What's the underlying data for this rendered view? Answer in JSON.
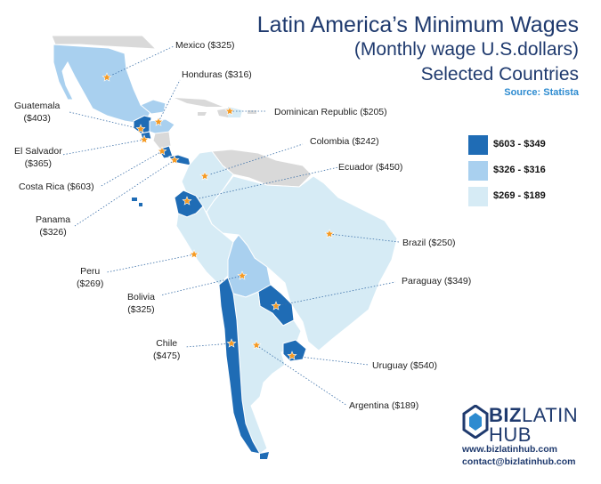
{
  "title": {
    "line1": "Latin America’s Minimum Wages",
    "line2": "(Monthly wage U.S.dollars)",
    "line3": "Selected Countries",
    "source": "Source: Statista"
  },
  "colors": {
    "dark": "#1f6cb5",
    "medium": "#a9d0ef",
    "light": "#d6ebf5",
    "other": "#d9d9d9",
    "marker": "#f59a23",
    "leader": "#3a6fa8",
    "title": "#1f3a6e"
  },
  "legend": [
    {
      "label": "$603 - $349",
      "tier": "dark"
    },
    {
      "label": "$326 - $316",
      "tier": "medium"
    },
    {
      "label": "$269 - $189",
      "tier": "light"
    }
  ],
  "countries": [
    {
      "name": "Mexico",
      "label": "Mexico ($325)",
      "wage": 325,
      "tier": "medium"
    },
    {
      "name": "Honduras",
      "label": "Honduras ($316)",
      "wage": 316,
      "tier": "medium"
    },
    {
      "name": "Guatemala",
      "label_line1": "Guatemala",
      "label_line2": "($403)",
      "wage": 403,
      "tier": "dark"
    },
    {
      "name": "Dominican Republic",
      "label": "Dominican Republic ($205)",
      "wage": 205,
      "tier": "light"
    },
    {
      "name": "El Salvador",
      "label_line1": "El Salvador",
      "label_line2": "($365)",
      "wage": 365,
      "tier": "dark"
    },
    {
      "name": "Colombia",
      "label": "Colombia ($242)",
      "wage": 242,
      "tier": "light"
    },
    {
      "name": "Costa Rica",
      "label": "Costa Rica ($603)",
      "wage": 603,
      "tier": "dark"
    },
    {
      "name": "Ecuador",
      "label": "Ecuador ($450)",
      "wage": 450,
      "tier": "dark"
    },
    {
      "name": "Panama",
      "label_line1": "Panama",
      "label_line2": "($326)",
      "wage": 326,
      "tier": "medium"
    },
    {
      "name": "Brazil",
      "label": "Brazil ($250)",
      "wage": 250,
      "tier": "light"
    },
    {
      "name": "Peru",
      "label_line1": "Peru",
      "label_line2": "($269)",
      "wage": 269,
      "tier": "light"
    },
    {
      "name": "Paraguay",
      "label": "Paraguay ($349)",
      "wage": 349,
      "tier": "dark"
    },
    {
      "name": "Bolivia",
      "label_line1": "Bolivia",
      "label_line2": "($325)",
      "wage": 325,
      "tier": "medium"
    },
    {
      "name": "Chile",
      "label_line1": "Chile",
      "label_line2": "($475)",
      "wage": 475,
      "tier": "dark"
    },
    {
      "name": "Uruguay",
      "label": "Uruguay ($540)",
      "wage": 540,
      "tier": "dark"
    },
    {
      "name": "Argentina",
      "label": "Argentina ($189)",
      "wage": 189,
      "tier": "light"
    }
  ],
  "brand": {
    "word1": "BIZ",
    "word2": "LATIN",
    "word3": "HUB",
    "website": "www.bizlatinhub.com",
    "email": "contact@bizlatinhub.com"
  }
}
